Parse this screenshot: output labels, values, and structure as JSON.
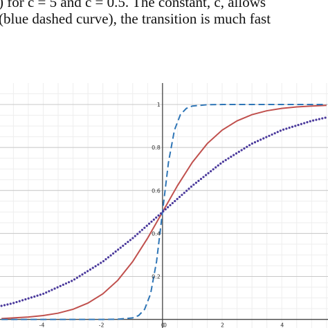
{
  "caption": {
    "line1": ") for c = 5 and c = 0.5. The constant, c, allows",
    "line2": "(blue dashed curve), the transition is much fast"
  },
  "chart_data": {
    "type": "line",
    "title": "",
    "xlabel": "",
    "ylabel": "",
    "xlim": [
      -5.45,
      5.55
    ],
    "ylim": [
      -0.04,
      1.1
    ],
    "grid": true,
    "x_ticks": [
      -4,
      -2,
      0,
      2,
      4
    ],
    "x_tick_labels": [
      "-4",
      "-2",
      "0",
      "2",
      "4"
    ],
    "y_ticks": [
      0.2,
      0.4,
      0.6,
      0.8,
      1
    ],
    "y_tick_labels": [
      "0.2",
      "0.4",
      "0.6",
      "0.8",
      "1"
    ],
    "series": [
      {
        "style": "solid",
        "color": "#c0504d",
        "c": 1,
        "x": [
          -5.4,
          -4.5,
          -4,
          -3.5,
          -3,
          -2.5,
          -2,
          -1.5,
          -1,
          -0.5,
          0,
          0.5,
          1,
          1.5,
          2,
          2.5,
          3,
          3.5,
          4,
          4.5,
          5,
          5.5
        ],
        "values": [
          0.004,
          0.011,
          0.018,
          0.029,
          0.047,
          0.076,
          0.119,
          0.182,
          0.269,
          0.378,
          0.5,
          0.622,
          0.731,
          0.818,
          0.881,
          0.924,
          0.953,
          0.971,
          0.982,
          0.989,
          0.993,
          0.996
        ]
      },
      {
        "style": "dashed",
        "color": "#2e75b6",
        "c": 5,
        "x": [
          -5.4,
          -2,
          -1.5,
          -1,
          -0.8,
          -0.6,
          -0.4,
          -0.2,
          0,
          0.2,
          0.4,
          0.6,
          0.8,
          1,
          1.5,
          2,
          5.5
        ],
        "values": [
          0,
          0,
          0.001,
          0.007,
          0.018,
          0.047,
          0.119,
          0.269,
          0.5,
          0.731,
          0.881,
          0.953,
          0.982,
          0.993,
          0.999,
          1,
          1
        ]
      },
      {
        "style": "dotted",
        "color": "#4b3a9c",
        "c": 0.5,
        "x": [
          -5.4,
          -5,
          -4,
          -3,
          -2,
          -1,
          0,
          1,
          2,
          3,
          4,
          5,
          5.5
        ],
        "values": [
          0.063,
          0.076,
          0.119,
          0.182,
          0.269,
          0.378,
          0.5,
          0.622,
          0.731,
          0.818,
          0.881,
          0.924,
          0.94
        ]
      }
    ]
  }
}
